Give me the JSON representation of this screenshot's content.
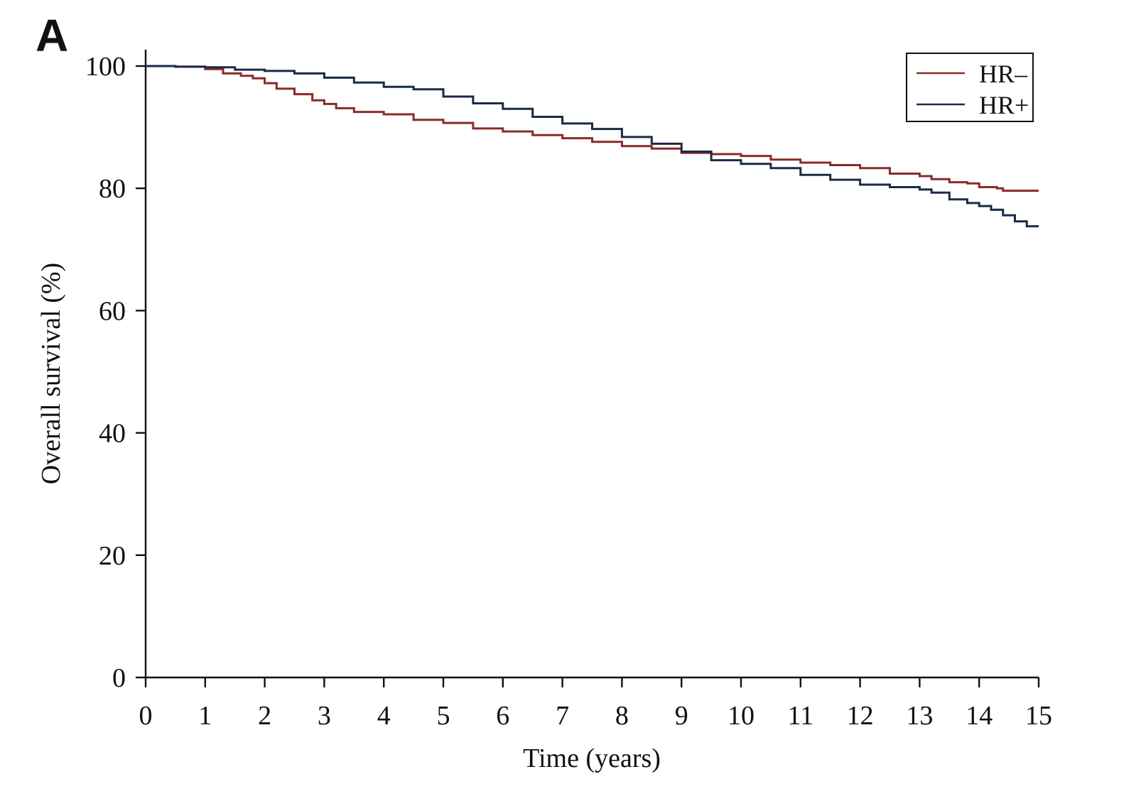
{
  "panel_label": "A",
  "chart_data": {
    "type": "line",
    "xlabel": "Time (years)",
    "ylabel": "Overall survival (%)",
    "xlim": [
      0,
      15
    ],
    "ylim": [
      0,
      100
    ],
    "x_ticks": [
      0,
      1,
      2,
      3,
      4,
      5,
      6,
      7,
      8,
      9,
      10,
      11,
      12,
      13,
      14,
      15
    ],
    "y_ticks": [
      0,
      20,
      40,
      60,
      80,
      100
    ],
    "grid": false,
    "legend_position": "top-right",
    "step": true,
    "series": [
      {
        "name": "HR–",
        "color": "#8b2a2a",
        "x": [
          0,
          0.5,
          1.0,
          1.3,
          1.6,
          1.8,
          2.0,
          2.2,
          2.5,
          2.8,
          3.0,
          3.2,
          3.5,
          4.0,
          4.5,
          5.0,
          5.5,
          6.0,
          6.5,
          7.0,
          7.5,
          8.0,
          8.5,
          9.0,
          9.5,
          10.0,
          10.5,
          11.0,
          11.5,
          12.0,
          12.5,
          13.0,
          13.2,
          13.5,
          13.8,
          14.0,
          14.3,
          14.4,
          15.0
        ],
        "y": [
          100,
          99.9,
          99.5,
          98.8,
          98.4,
          98.0,
          97.2,
          96.3,
          95.4,
          94.4,
          93.8,
          93.1,
          92.5,
          92.1,
          91.2,
          90.7,
          89.8,
          89.3,
          88.7,
          88.2,
          87.6,
          86.9,
          86.5,
          85.8,
          85.6,
          85.3,
          84.7,
          84.2,
          83.8,
          83.3,
          82.4,
          82.0,
          81.5,
          81.0,
          80.8,
          80.2,
          80.0,
          79.6,
          79.6
        ]
      },
      {
        "name": "HR+",
        "color": "#1b2a47",
        "x": [
          0,
          0.5,
          1.0,
          1.5,
          2.0,
          2.5,
          3.0,
          3.5,
          4.0,
          4.5,
          5.0,
          5.5,
          6.0,
          6.5,
          7.0,
          7.5,
          8.0,
          8.5,
          9.0,
          9.5,
          10.0,
          10.5,
          11.0,
          11.5,
          12.0,
          12.5,
          13.0,
          13.2,
          13.5,
          13.8,
          14.0,
          14.2,
          14.4,
          14.6,
          14.8,
          15.0
        ],
        "y": [
          100,
          99.9,
          99.8,
          99.4,
          99.2,
          98.8,
          98.1,
          97.3,
          96.6,
          96.2,
          95.0,
          93.9,
          93.0,
          91.7,
          90.6,
          89.7,
          88.4,
          87.3,
          86.0,
          84.6,
          84.0,
          83.3,
          82.2,
          81.4,
          80.6,
          80.2,
          79.8,
          79.3,
          78.2,
          77.6,
          77.1,
          76.5,
          75.6,
          74.6,
          73.8,
          73.8
        ]
      }
    ]
  }
}
